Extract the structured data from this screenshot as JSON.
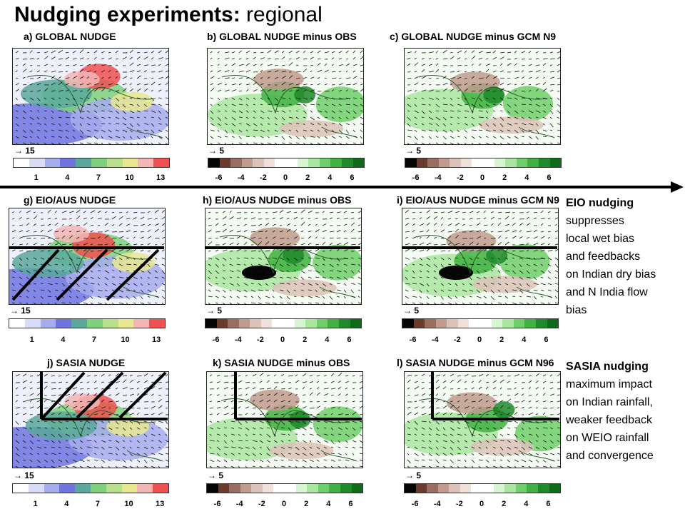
{
  "title": {
    "bold": "Nudging experiments:",
    "rest": " regional"
  },
  "panels": {
    "a": {
      "label": "a) GLOBAL NUDGE",
      "vec": "15",
      "ticks": [
        "1",
        "4",
        "7",
        "10",
        "13"
      ]
    },
    "b": {
      "label": "b) GLOBAL NUDGE minus OBS",
      "vec": "5",
      "ticks": [
        "-6",
        "-4",
        "-2",
        "0",
        "2",
        "4",
        "6"
      ]
    },
    "c": {
      "label": "c) GLOBAL NUDGE minus GCM N9",
      "vec": "5",
      "ticks": [
        "-6",
        "-4",
        "-2",
        "0",
        "2",
        "4",
        "6"
      ]
    },
    "g": {
      "label": "g) EIO/AUS NUDGE",
      "vec": "15",
      "ticks": [
        "1",
        "4",
        "7",
        "10",
        "13"
      ]
    },
    "h": {
      "label": "h) EIO/AUS NUDGE minus OBS",
      "vec": "5",
      "ticks": [
        "-6",
        "-4",
        "-2",
        "0",
        "2",
        "4",
        "6"
      ]
    },
    "i": {
      "label": "i) EIO/AUS NUDGE minus GCM N9",
      "vec": "5",
      "ticks": [
        "-6",
        "-4",
        "-2",
        "0",
        "2",
        "4",
        "6"
      ]
    },
    "j": {
      "label": "j) SASIA NUDGE",
      "vec": "15",
      "ticks": [
        "1",
        "4",
        "7",
        "10",
        "13"
      ]
    },
    "k": {
      "label": "k) SASIA NUDGE minus OBS",
      "vec": "5",
      "ticks": [
        "-6",
        "-4",
        "-2",
        "0",
        "2",
        "4",
        "6"
      ]
    },
    "l": {
      "label": "l) SASIA NUDGE minus GCM N96",
      "vec": "5",
      "ticks": [
        "-6",
        "-4",
        "-2",
        "0",
        "2",
        "4",
        "6"
      ]
    }
  },
  "notes": {
    "eio": {
      "heading": "EIO nudging",
      "lines": [
        "suppresses",
        "local wet bias",
        "and feedbacks",
        "on Indian dry bias",
        "and N India flow",
        "bias"
      ]
    },
    "sasia": {
      "heading": "SASIA nudging",
      "lines": [
        "maximum impact",
        "on Indian rainfall,",
        "weaker feedback",
        "on WEIO rainfall",
        "and convergence"
      ]
    }
  },
  "colors": {
    "seq": [
      "#ffffff",
      "#d8dcf6",
      "#a7acef",
      "#6f74e0",
      "#5aa89c",
      "#7fd07c",
      "#b8e08a",
      "#e8e890",
      "#f5b5b5",
      "#f05050"
    ],
    "div": [
      "#050505",
      "#6b3a2a",
      "#9a6e5e",
      "#c09b8e",
      "#dcc2b9",
      "#efe0da",
      "#ffffff",
      "#ffffff",
      "#d8f5d2",
      "#a9e6a0",
      "#6fcf6a",
      "#3fb23f",
      "#1f8a2a",
      "#0f6a1a"
    ]
  }
}
